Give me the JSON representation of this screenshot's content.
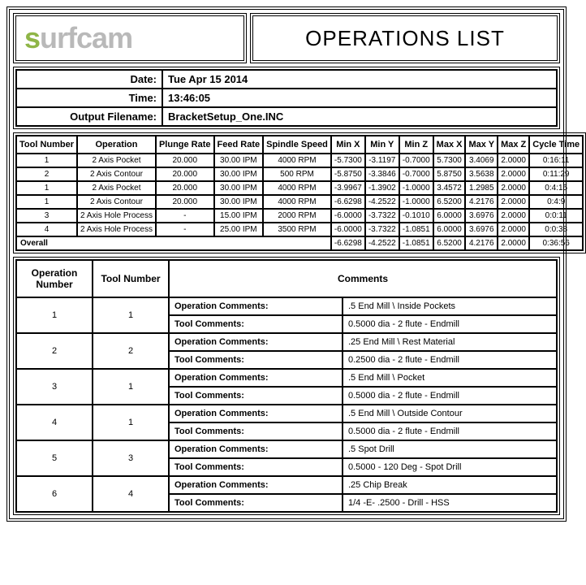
{
  "brand": {
    "first": "s",
    "rest": "urfcam"
  },
  "title": "OPERATIONS LIST",
  "meta": {
    "date_label": "Date:",
    "date_value": "Tue Apr 15 2014",
    "time_label": "Time:",
    "time_value": "13:46:05",
    "file_label": "Output Filename:",
    "file_value": "BracketSetup_One.INC"
  },
  "ops": {
    "headers": [
      "Tool Number",
      "Operation",
      "Plunge Rate",
      "Feed Rate",
      "Spindle Speed",
      "Min X",
      "Min Y",
      "Min Z",
      "Max X",
      "Max Y",
      "Max Z",
      "Cycle Time"
    ],
    "rows": [
      [
        "1",
        "2 Axis Pocket",
        "20.000",
        "30.00 IPM",
        "4000 RPM",
        "-5.7300",
        "-3.1197",
        "-0.7000",
        "5.7300",
        "3.4069",
        "2.0000",
        "0:16:11"
      ],
      [
        "2",
        "2 Axis Contour",
        "20.000",
        "30.00 IPM",
        "500 RPM",
        "-5.8750",
        "-3.3846",
        "-0.7000",
        "5.8750",
        "3.5638",
        "2.0000",
        "0:11:29"
      ],
      [
        "1",
        "2 Axis Pocket",
        "20.000",
        "30.00 IPM",
        "4000 RPM",
        "-3.9967",
        "-1.3902",
        "-1.0000",
        "3.4572",
        "1.2985",
        "2.0000",
        "0:4:15"
      ],
      [
        "1",
        "2 Axis Contour",
        "20.000",
        "30.00 IPM",
        "4000 RPM",
        "-6.6298",
        "-4.2522",
        "-1.0000",
        "6.5200",
        "4.2176",
        "2.0000",
        "0:4:9"
      ],
      [
        "3",
        "2 Axis Hole Process",
        "-",
        "15.00 IPM",
        "2000 RPM",
        "-6.0000",
        "-3.7322",
        "-0.1010",
        "6.0000",
        "3.6976",
        "2.0000",
        "0:0:11"
      ],
      [
        "4",
        "2 Axis Hole Process",
        "-",
        "25.00 IPM",
        "3500 RPM",
        "-6.0000",
        "-3.7322",
        "-1.0851",
        "6.0000",
        "3.6976",
        "2.0000",
        "0:0:38"
      ]
    ],
    "overall_label": "Overall",
    "overall": [
      "-6.6298",
      "-4.2522",
      "-1.0851",
      "6.5200",
      "4.2176",
      "2.0000",
      "0:36:56"
    ]
  },
  "comments": {
    "headers": [
      "Operation Number",
      "Tool Number",
      "Comments"
    ],
    "op_label": "Operation Comments:",
    "tool_label": "Tool Comments:",
    "rows": [
      {
        "op": "1",
        "tool": "1",
        "opc": ".5 End Mill \\ Inside Pockets",
        "tc": "0.5000 dia - 2 flute - Endmill"
      },
      {
        "op": "2",
        "tool": "2",
        "opc": ".25 End Mill \\ Rest Material",
        "tc": "0.2500 dia - 2 flute - Endmill"
      },
      {
        "op": "3",
        "tool": "1",
        "opc": ".5 End Mill \\ Pocket",
        "tc": "0.5000 dia - 2 flute - Endmill"
      },
      {
        "op": "4",
        "tool": "1",
        "opc": ".5 End Mill \\ Outside Contour",
        "tc": "0.5000 dia - 2 flute - Endmill"
      },
      {
        "op": "5",
        "tool": "3",
        "opc": ".5 Spot Drill",
        "tc": "0.5000 - 120 Deg - Spot Drill"
      },
      {
        "op": "6",
        "tool": "4",
        "opc": ".25 Chip Break",
        "tc": "1/4 -E- .2500 - Drill - HSS"
      }
    ]
  },
  "colors": {
    "logo_s": "#8fb547",
    "logo_rest": "#b9b9b9",
    "border": "#000000",
    "background": "#ffffff"
  },
  "typography": {
    "body_fontsize": 11,
    "title_fontsize": 26,
    "logo_fontsize": 36
  }
}
